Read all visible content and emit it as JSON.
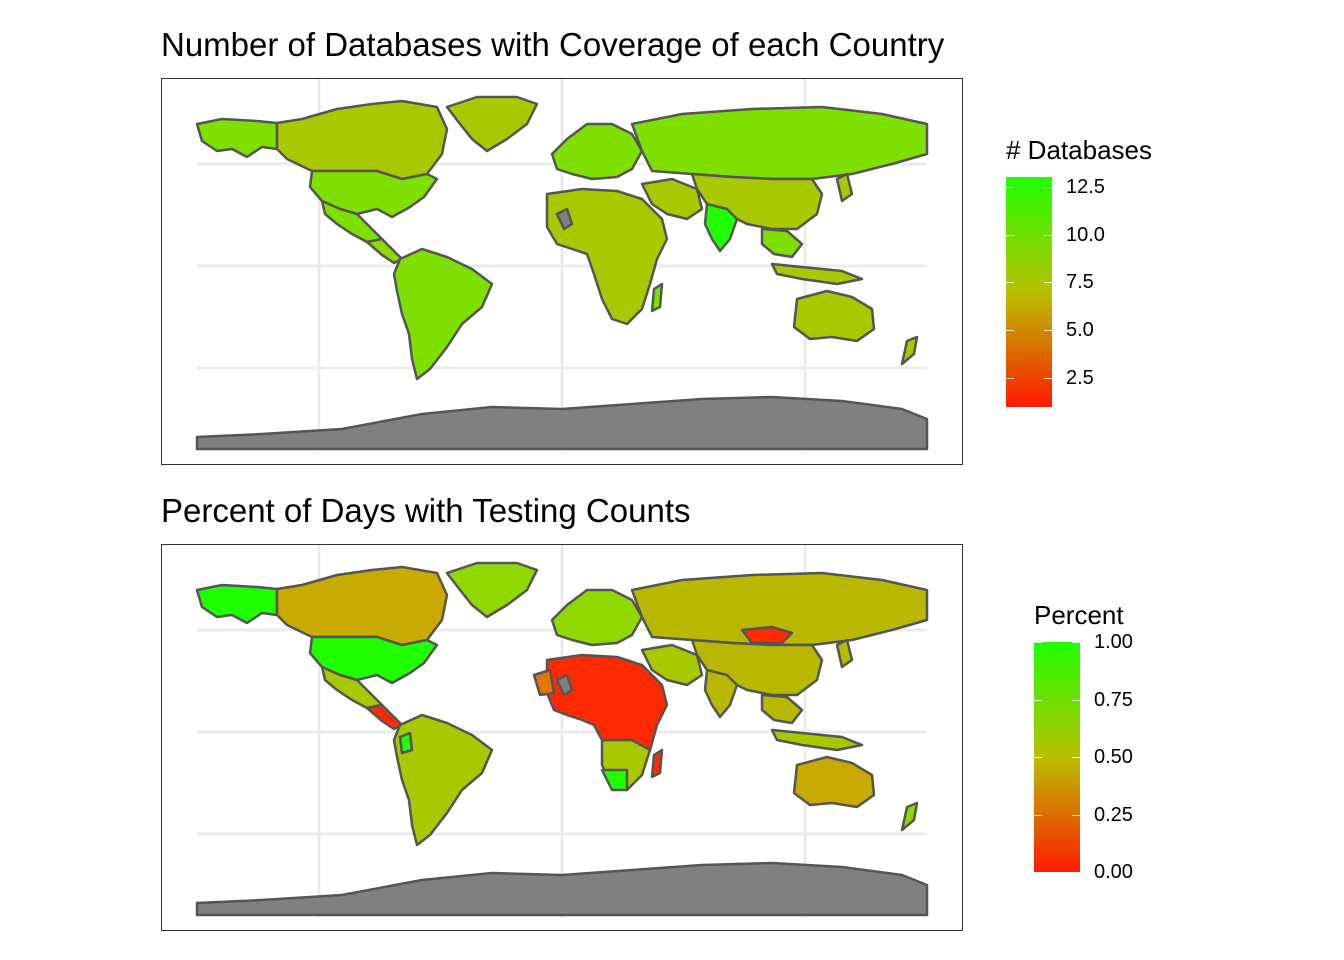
{
  "panels": [
    {
      "title": "Number of Databases with Coverage of each Country",
      "legend": {
        "title": "# Databases",
        "ticks": [
          "12.5",
          "10.0",
          "7.5",
          "5.0",
          "2.5"
        ],
        "tick_values": [
          12.5,
          10.0,
          7.5,
          5.0,
          2.5
        ],
        "range": [
          1,
          13
        ],
        "low_color": "#ff1a00",
        "mid_color": "#b8c000",
        "high_color": "#20ff00"
      }
    },
    {
      "title": "Percent of Days with Testing Counts",
      "legend": {
        "title": "Percent",
        "ticks": [
          "1.00",
          "0.75",
          "0.50",
          "0.25",
          "0.00"
        ],
        "tick_values": [
          1.0,
          0.75,
          0.5,
          0.25,
          0.0
        ],
        "range": [
          0,
          1
        ],
        "low_color": "#ff1a00",
        "mid_color": "#b8c000",
        "high_color": "#20ff00"
      }
    }
  ],
  "colors": {
    "missing": "#808080",
    "border": "#555555",
    "grid": "#ebebeb"
  }
}
